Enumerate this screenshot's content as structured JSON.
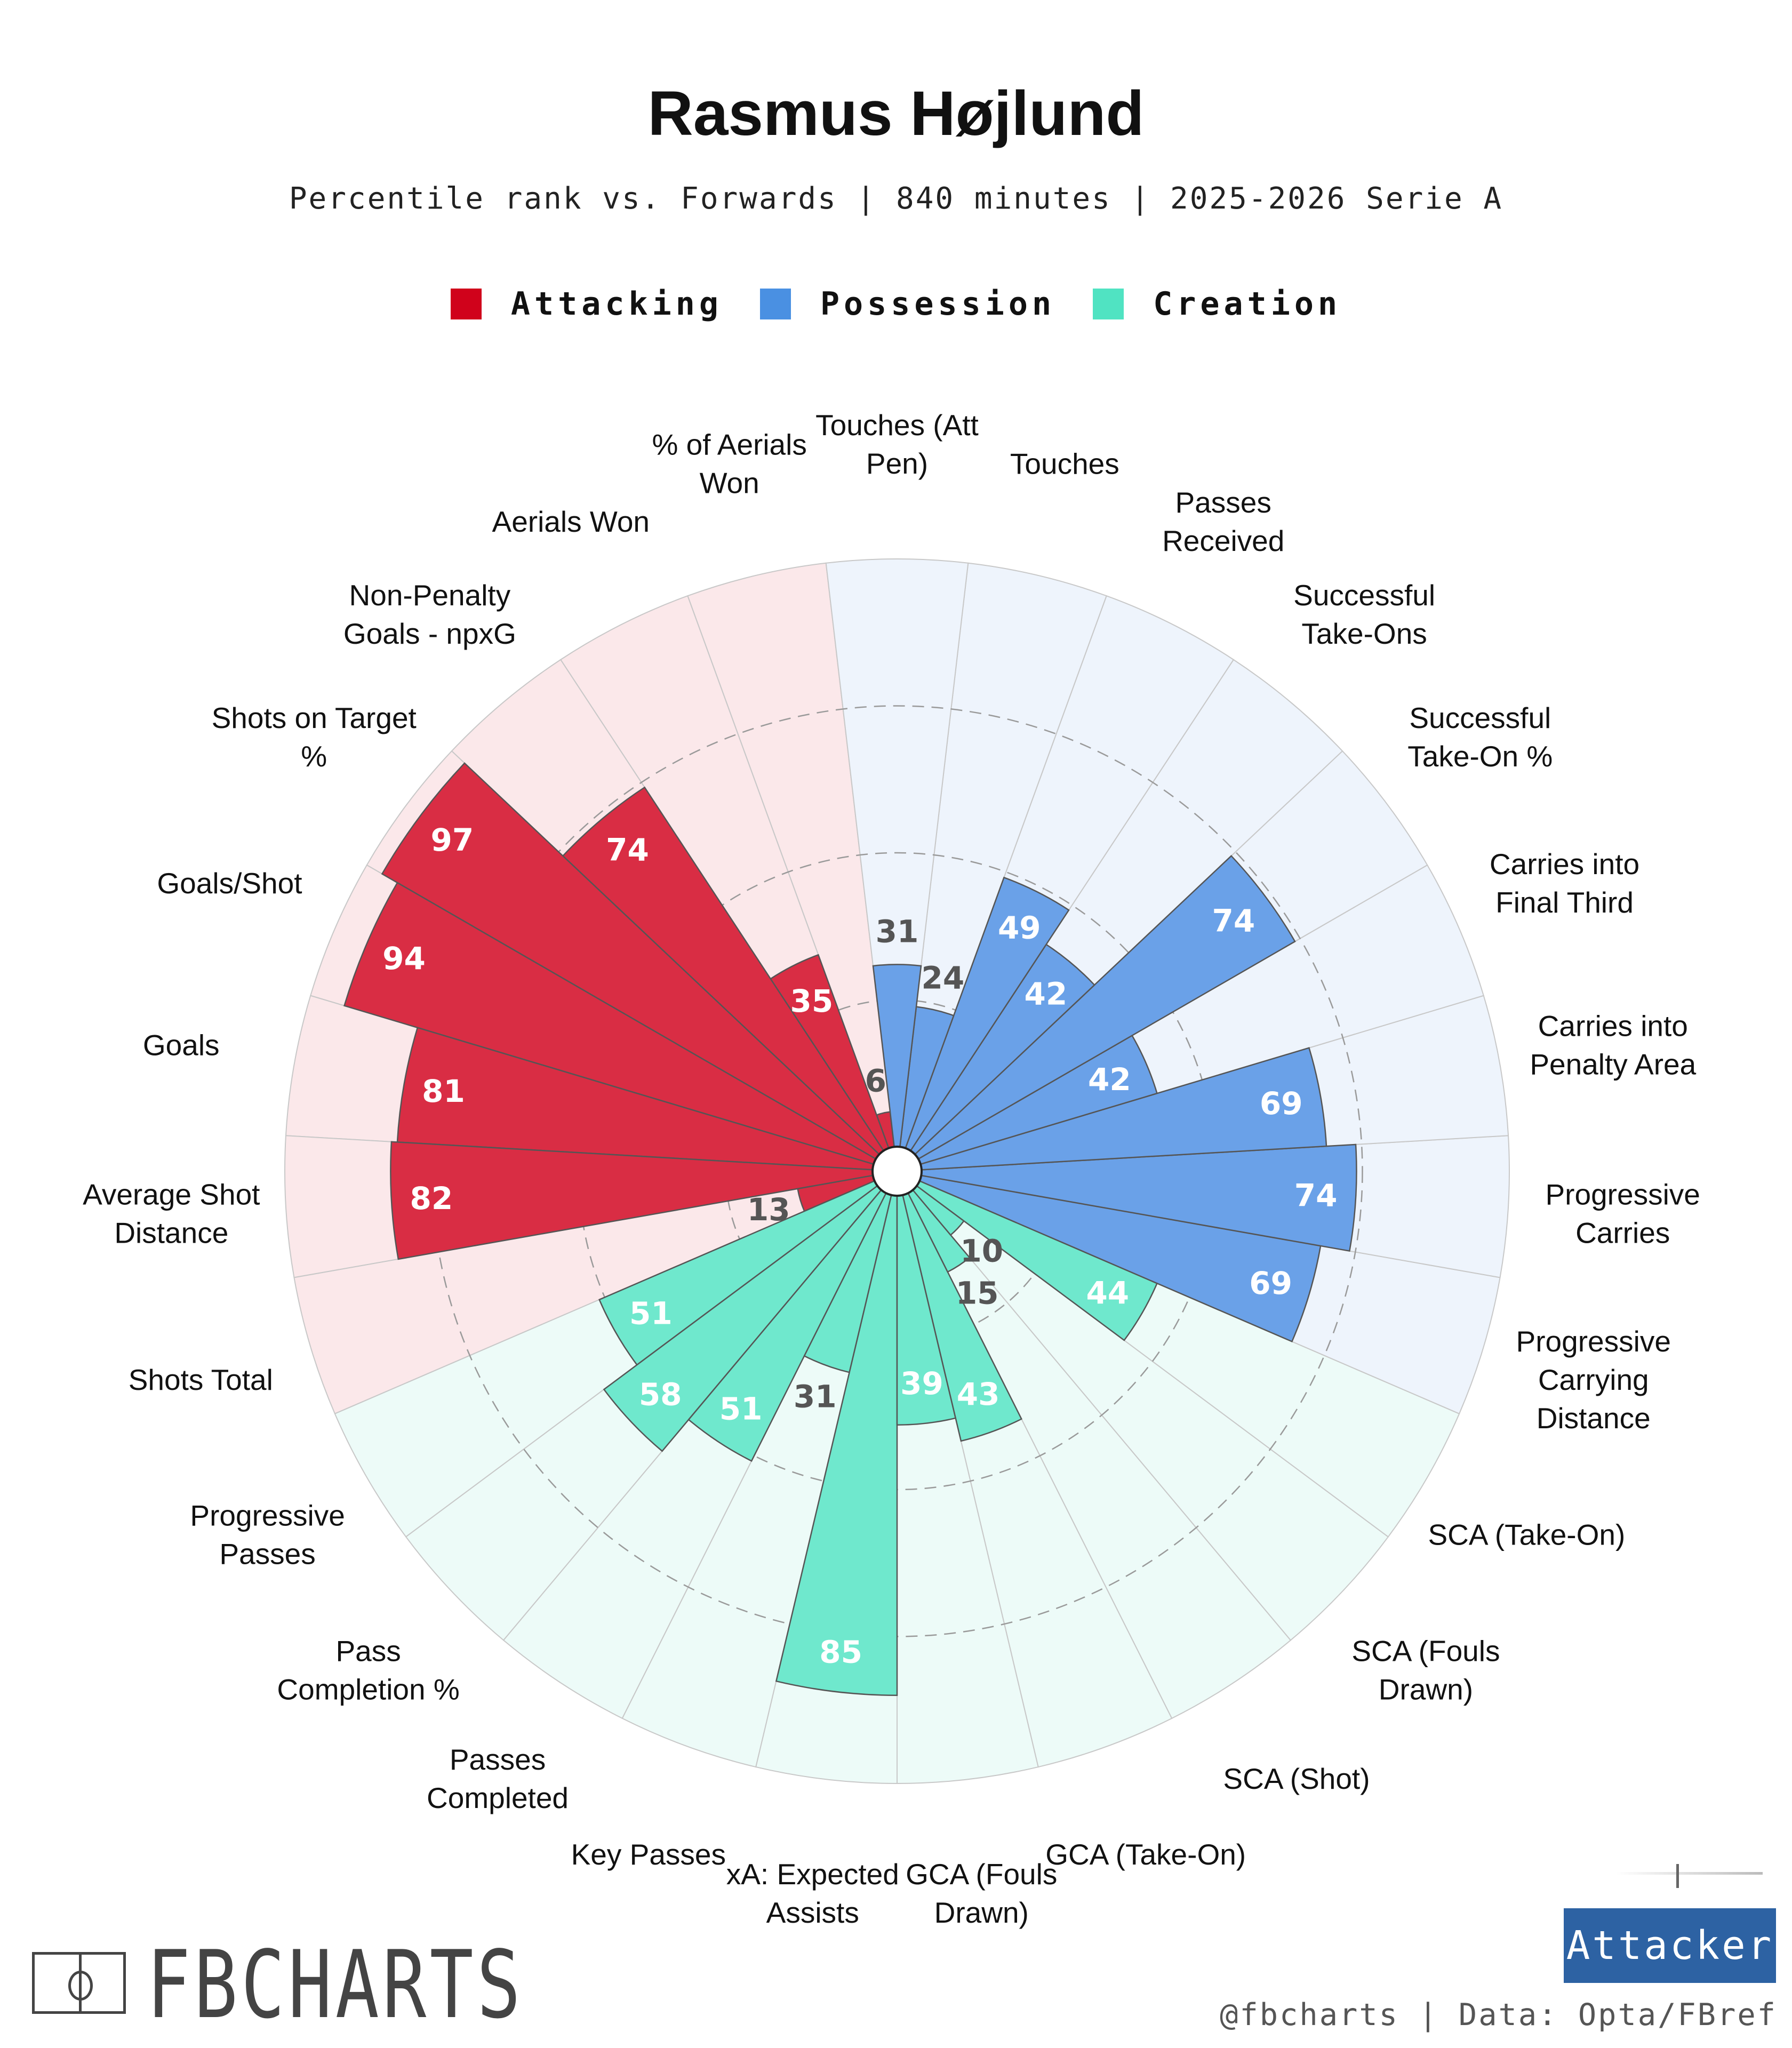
{
  "header": {
    "title": "Rasmus Højlund",
    "subtitle": "Percentile rank vs. Forwards | 840 minutes | 2025-2026 Serie A"
  },
  "legend": [
    {
      "label": "Attacking",
      "color": "#d0021b"
    },
    {
      "label": "Possession",
      "color": "#4a90e2"
    },
    {
      "label": "Creation",
      "color": "#50e3c2"
    }
  ],
  "chart_data": {
    "type": "polar-bar",
    "title": "Rasmus Højlund",
    "ylim": [
      0,
      100
    ],
    "gridlines": [
      25,
      50,
      75
    ],
    "series": [
      {
        "name": "Attacking",
        "color": "#d0021b",
        "bar_color": "#d92d44",
        "bg_color": "#fbe8ea",
        "label_color": "#ffffff"
      },
      {
        "name": "Possession",
        "color": "#4a90e2",
        "bar_color": "#6aa1e8",
        "bg_color": "#eef4fc",
        "label_color": "#ffffff"
      },
      {
        "name": "Creation",
        "color": "#50e3c2",
        "bar_color": "#6fe8cd",
        "bg_color": "#edfbf8",
        "label_color": "#ffffff"
      }
    ],
    "categories": [
      {
        "label": "% of Aerials Won",
        "value": 6,
        "group": "Attacking"
      },
      {
        "label": "Aerials Won",
        "value": 35,
        "group": "Attacking"
      },
      {
        "label": "Non-Penalty Goals - npxG",
        "value": 74,
        "group": "Attacking"
      },
      {
        "label": "Shots on Target %",
        "value": 97,
        "group": "Attacking"
      },
      {
        "label": "Goals/Shot",
        "value": 94,
        "group": "Attacking"
      },
      {
        "label": "Goals",
        "value": 81,
        "group": "Attacking"
      },
      {
        "label": "Average Shot Distance",
        "value": 82,
        "group": "Attacking"
      },
      {
        "label": "Shots Total",
        "value": 13,
        "group": "Attacking"
      },
      {
        "label": "Progressive Passes",
        "value": 51,
        "group": "Creation"
      },
      {
        "label": "Pass Completion %",
        "value": 58,
        "group": "Creation"
      },
      {
        "label": "Passes Completed",
        "value": 51,
        "group": "Creation"
      },
      {
        "label": "Key Passes",
        "value": 31,
        "group": "Creation"
      },
      {
        "label": "xA: Expected Assists",
        "value": 85,
        "group": "Creation"
      },
      {
        "label": "GCA (Fouls Drawn)",
        "value": 39,
        "group": "Creation"
      },
      {
        "label": "GCA (Take-On)",
        "value": 43,
        "group": "Creation"
      },
      {
        "label": "SCA (Shot)",
        "value": 15,
        "group": "Creation"
      },
      {
        "label": "SCA (Fouls Drawn)",
        "value": 10,
        "group": "Creation"
      },
      {
        "label": "SCA (Take-On)",
        "value": 44,
        "group": "Creation"
      },
      {
        "label": "Progressive Carrying Distance",
        "value": 69,
        "group": "Possession"
      },
      {
        "label": "Progressive Carries",
        "value": 74,
        "group": "Possession"
      },
      {
        "label": "Carries into Penalty Area",
        "value": 69,
        "group": "Possession"
      },
      {
        "label": "Carries into Final Third",
        "value": 42,
        "group": "Possession"
      },
      {
        "label": "Successful Take-On %",
        "value": 74,
        "group": "Possession"
      },
      {
        "label": "Successful Take-Ons",
        "value": 42,
        "group": "Possession"
      },
      {
        "label": "Passes Received",
        "value": 49,
        "group": "Possession"
      },
      {
        "label": "Touches",
        "value": 24,
        "group": "Possession"
      },
      {
        "label": "Touches (Att Pen)",
        "value": 31,
        "group": "Possession"
      }
    ]
  },
  "footer": {
    "brand": "FBCHARTS",
    "badge": "Attacker",
    "credit": "@fbcharts | Data: Opta/FBref"
  }
}
